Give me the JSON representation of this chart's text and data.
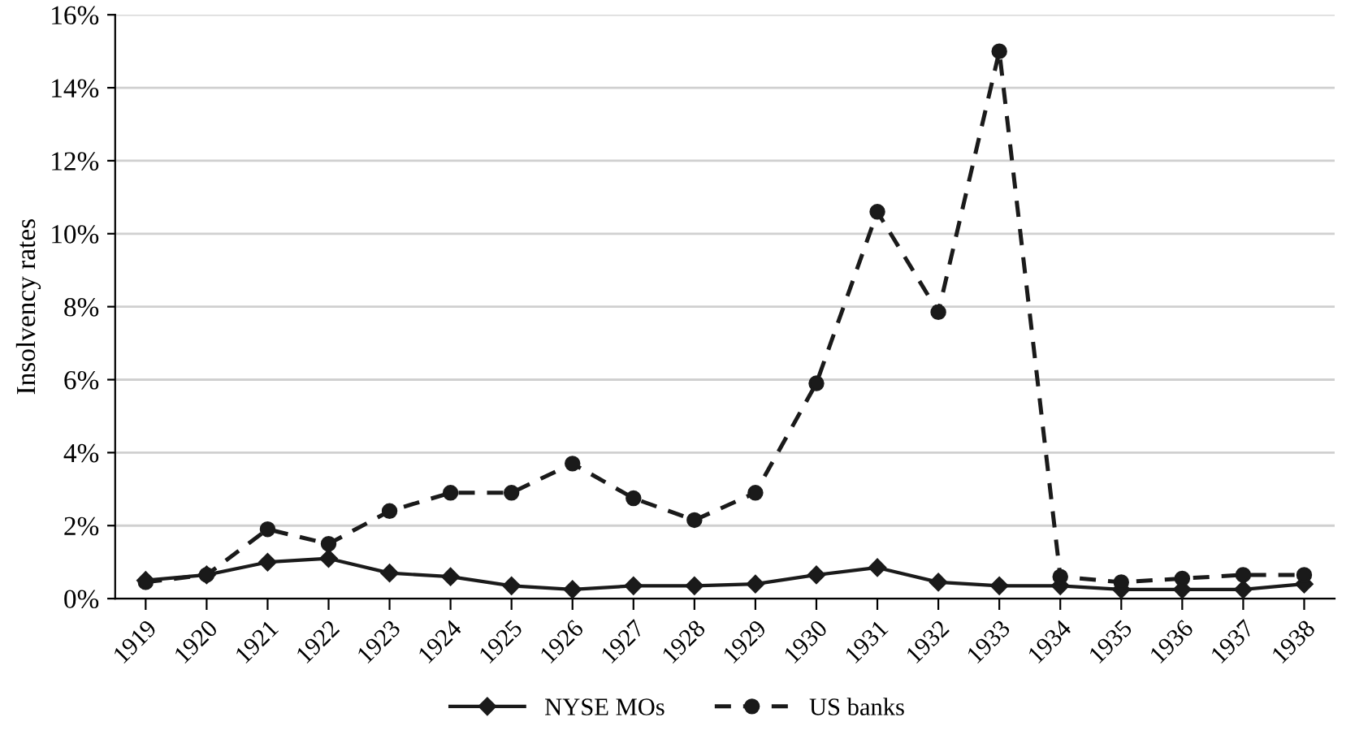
{
  "chart_data": {
    "type": "line",
    "ylabel": "Insolvency rates",
    "categories": [
      "1919",
      "1920",
      "1921",
      "1922",
      "1923",
      "1924",
      "1925",
      "1926",
      "1927",
      "1928",
      "1929",
      "1930",
      "1931",
      "1932",
      "1933",
      "1934",
      "1935",
      "1936",
      "1937",
      "1938"
    ],
    "series": [
      {
        "name": "NYSE MOs",
        "color": "#1a1a1a",
        "marker": "diamond",
        "line_style": "solid",
        "values": [
          0.5,
          0.65,
          1.0,
          1.1,
          0.7,
          0.6,
          0.35,
          0.25,
          0.35,
          0.35,
          0.4,
          0.65,
          0.85,
          0.45,
          0.35,
          0.35,
          0.25,
          0.25,
          0.25,
          0.4
        ]
      },
      {
        "name": "US banks",
        "color": "#1a1a1a",
        "marker": "circle",
        "line_style": "dashed",
        "values": [
          0.45,
          0.65,
          1.9,
          1.5,
          2.4,
          2.9,
          2.9,
          3.7,
          2.75,
          2.15,
          2.9,
          5.9,
          10.6,
          7.85,
          15.0,
          0.6,
          0.45,
          0.55,
          0.65,
          0.65
        ]
      }
    ],
    "ylim": [
      0,
      16
    ],
    "yticks": [
      {
        "value": 0,
        "label": "0%"
      },
      {
        "value": 2,
        "label": "2%"
      },
      {
        "value": 4,
        "label": "4%"
      },
      {
        "value": 6,
        "label": "6%"
      },
      {
        "value": 8,
        "label": "8%"
      },
      {
        "value": 10,
        "label": "10%"
      },
      {
        "value": 12,
        "label": "12%"
      },
      {
        "value": 14,
        "label": "14%"
      },
      {
        "value": 16,
        "label": "16%"
      }
    ],
    "grid": "y",
    "legend": "bottom"
  }
}
